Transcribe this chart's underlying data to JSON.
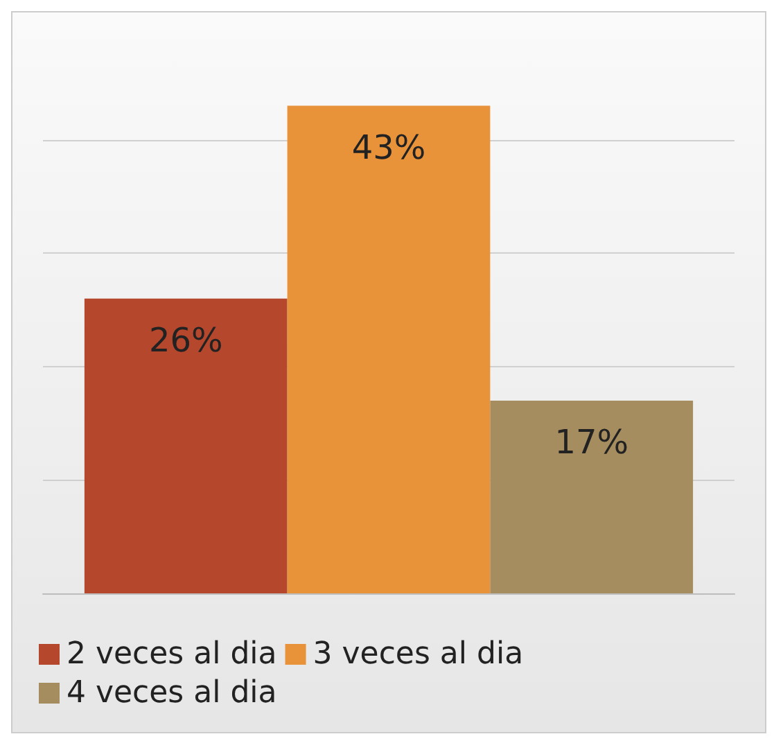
{
  "chart_data": {
    "type": "bar",
    "categories": [
      null
    ],
    "series": [
      {
        "name": "2 veces al dia",
        "color": "#b5472c",
        "values": [
          26
        ],
        "value_labels": [
          "26%"
        ]
      },
      {
        "name": "3 veces al dia",
        "color": "#e8923a",
        "values": [
          43
        ],
        "value_labels": [
          "43%"
        ]
      },
      {
        "name": "4 veces al dia",
        "color": "#a68d5f",
        "values": [
          17
        ],
        "value_labels": [
          "17%"
        ]
      }
    ],
    "yticks": [
      {
        "value": 0,
        "label": null
      },
      {
        "value": 10,
        "label": null
      },
      {
        "value": 20,
        "label": null
      },
      {
        "value": 30,
        "label": null
      },
      {
        "value": 40,
        "label": null
      }
    ],
    "grid": "y",
    "legend": "bottom"
  }
}
